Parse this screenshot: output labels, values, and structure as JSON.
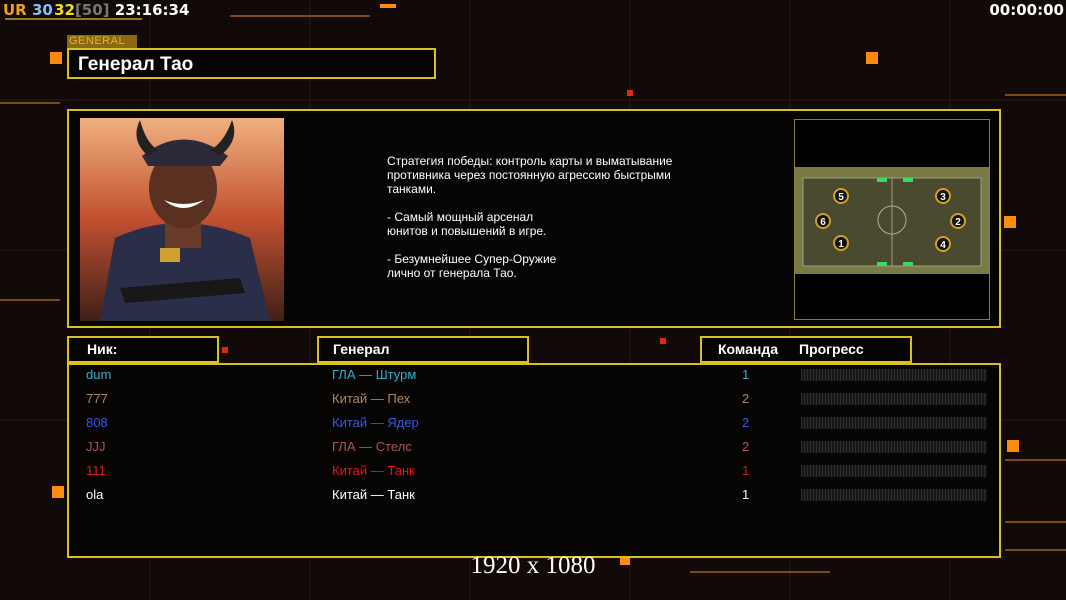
{
  "hud": {
    "ur": "UR",
    "n1": "30",
    "n2": "32",
    "bracket": "[50]",
    "clock": "23:16:34",
    "timer": "00:00:00"
  },
  "general_tag": "GENERAL",
  "general_name": "Генерал Тао",
  "description": "Стратегия победы: контроль карты и выматывание\n противника через постоянную агрессию быстрыми\n танками.\n\n- Самый мощный арсенал\nюнитов и повышений в игре.\n\n- Безумнейшее Супер-Оружие\nлично от генерала Тао.",
  "map": {
    "spawns": [
      "1",
      "2",
      "3",
      "4",
      "5",
      "6"
    ]
  },
  "headers": {
    "nick": "Ник:",
    "general": "Генерал",
    "team": "Команда",
    "progress": "Прогресс"
  },
  "players": [
    {
      "nick": "dum",
      "general": "ГЛА — Штурм",
      "team": "1",
      "color": "#30b0d0",
      "progress": 0
    },
    {
      "nick": "777",
      "general": "Китай — Пех",
      "team": "2",
      "color": "#b08860",
      "progress": 0
    },
    {
      "nick": "808",
      "general": "Китай — Ядер",
      "team": "2",
      "color": "#3858e0",
      "progress": 0
    },
    {
      "nick": "JJJ",
      "general": "ГЛА — Стелс",
      "team": "2",
      "color": "#a85850",
      "progress": 0
    },
    {
      "nick": "111",
      "general": "Китай — Танк",
      "team": "1",
      "color": "#e01818",
      "progress": 0
    },
    {
      "nick": "ola",
      "general": "Китай — Танк",
      "team": "1",
      "color": "#ffffff",
      "progress": 0
    }
  ],
  "resolution": "1920 x 1080",
  "colors": {
    "frame": "#d8c020",
    "accent": "#ff8a10"
  }
}
